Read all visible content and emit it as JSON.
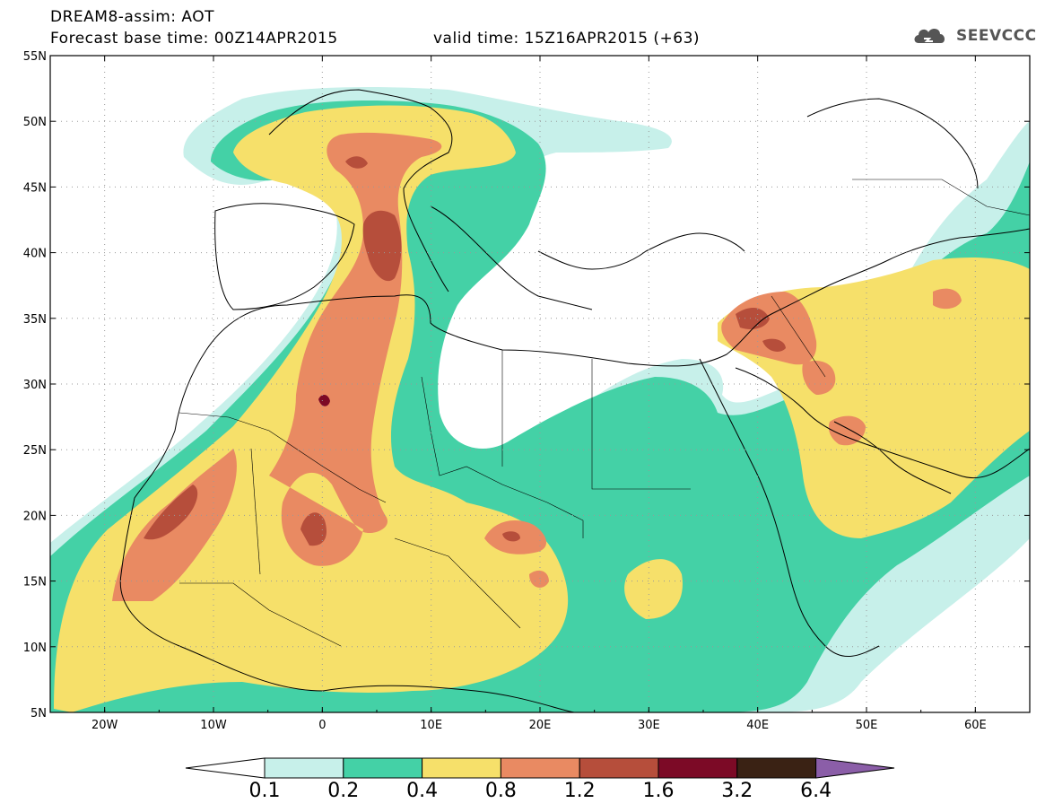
{
  "header": {
    "title": "DREAM8-assim: AOT",
    "base_time": "Forecast base time: 00Z14APR2015",
    "valid_time": "valid time: 15Z16APR2015 (+63)",
    "logo_text": "SEEVCCC"
  },
  "map": {
    "lat_labels": [
      "55N",
      "50N",
      "45N",
      "40N",
      "35N",
      "30N",
      "25N",
      "20N",
      "15N",
      "10N",
      "5N"
    ],
    "lon_labels": [
      "20W",
      "10W",
      "0",
      "10E",
      "20E",
      "30E",
      "40E",
      "50E",
      "60E"
    ],
    "lon_range": [
      -25,
      65
    ],
    "lat_range": [
      5,
      55
    ]
  },
  "colorbar": {
    "labels": [
      "0.1",
      "0.2",
      "0.4",
      "0.8",
      "1.2",
      "1.6",
      "3.2",
      "6.4"
    ],
    "colors": [
      "#ffffff",
      "#c7f0ea",
      "#44d1a6",
      "#f6e06a",
      "#e98a62",
      "#b64e3b",
      "#7c0a26",
      "#3a2214",
      "#8b5ea8"
    ]
  },
  "colors": {
    "c1": "#c7f0ea",
    "c2": "#44d1a6",
    "c3": "#f6e06a",
    "c4": "#e98a62",
    "c5": "#b64e3b",
    "c6": "#7c0a26"
  }
}
